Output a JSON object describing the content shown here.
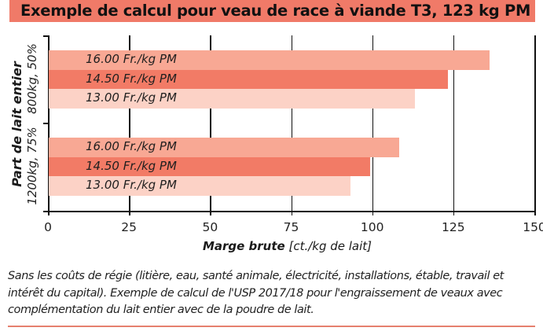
{
  "title": "Exemple de calcul pour veau de race à viande T3, 123 kg PM",
  "colors": {
    "title_bg": "#f07a68",
    "bar_16": "#f8a894",
    "bar_14_50": "#f27b66",
    "bar_13": "#fcd2c6",
    "rule": "#e6806e"
  },
  "chart_data": {
    "type": "bar",
    "orientation": "horizontal",
    "title": "Exemple de calcul pour veau de race à viande T3, 123 kg PM",
    "xlabel_bold": "Marge brute",
    "xlabel_rest": " [ct./kg de lait]",
    "xlabel": "Marge brute [ct./kg de lait]",
    "ylabel": "Part de lait entier",
    "xlim": [
      0,
      150
    ],
    "xticks": [
      0,
      25,
      50,
      75,
      100,
      125,
      150
    ],
    "xtick_labels": [
      "0",
      "25",
      "50",
      "75",
      "100",
      "125",
      "150"
    ],
    "grid": "vertical gridlines at each x tick",
    "legend": "none (series labels printed inside bars)",
    "categories": [
      "800kg, 50%",
      "1200kg, 75%"
    ],
    "series": [
      {
        "name": "16.00 Fr./kg PM",
        "color": "#f8a894",
        "values": [
          136,
          108
        ]
      },
      {
        "name": "14.50 Fr./kg PM",
        "color": "#f27b66",
        "values": [
          123,
          99
        ]
      },
      {
        "name": "13.00 Fr./kg PM",
        "color": "#fcd2c6",
        "values": [
          113,
          93
        ]
      }
    ]
  },
  "note": "Sans les coûts de régie (litière, eau, santé animale, électricité, installations, étable, travail et intérêt du capital). Exemple de calcul de l'USP 2017/18 pour l'engraissement de veaux avec complémentation du lait entier avec de la poudre de lait.",
  "note_lines": [
    "Sans les coûts de régie (litière, eau, santé animale, électricité, installations, étable, travail et",
    "intérêt du capital). Exemple de calcul de l'USP 2017/18 pour l'engraissement de veaux avec",
    "complémentation du lait entier avec de la poudre de lait."
  ]
}
